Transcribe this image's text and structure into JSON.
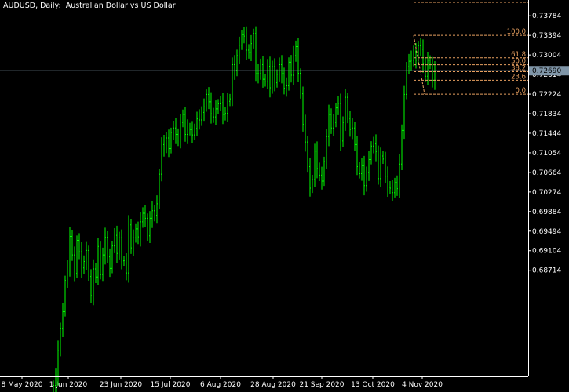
{
  "header": {
    "title": "AUDUSD, Daily:  Australian Dollar vs US Dollar"
  },
  "colors": {
    "background": "#000000",
    "candles": "#00ff00",
    "grid_text": "#ffffff",
    "fib": "#e8a060",
    "bid_line": "#8096a8",
    "price_tag_bg": "#8096a8"
  },
  "chart_data": {
    "type": "candlestick",
    "symbol": "AUDUSD",
    "timeframe": "Daily",
    "title": "AUDUSD, Daily:  Australian Dollar vs US Dollar",
    "ylim": [
      0.666,
      0.741
    ],
    "y_ticks": [
      "0.73784",
      "0.73394",
      "0.73004",
      "0.72614",
      "0.72224",
      "0.71834",
      "0.71444",
      "0.71054",
      "0.70664",
      "0.70274",
      "0.69884",
      "0.69494",
      "0.69104",
      "0.68714"
    ],
    "x_ticks": [
      "8 May 2020",
      "1 Jun 2020",
      "23 Jun 2020",
      "15 Jul 2020",
      "6 Aug 2020",
      "28 Aug 2020",
      "21 Sep 2020",
      "13 Oct 2020",
      "4 Nov 2020"
    ],
    "current_price": "0.72690",
    "closes": [
      0.6642,
      0.6661,
      0.6712,
      0.6755,
      0.6789,
      0.6851,
      0.6878,
      0.6939,
      0.6902,
      0.6865,
      0.6931,
      0.6908,
      0.6876,
      0.6889,
      0.6911,
      0.6859,
      0.6821,
      0.6874,
      0.6858,
      0.6919,
      0.6863,
      0.6902,
      0.6937,
      0.6898,
      0.6875,
      0.692,
      0.6941,
      0.6905,
      0.6936,
      0.689,
      0.6891,
      0.6866,
      0.6962,
      0.6916,
      0.6936,
      0.6954,
      0.6938,
      0.6968,
      0.6985,
      0.6975,
      0.694,
      0.6975,
      0.699,
      0.6981,
      0.7004,
      0.7063,
      0.7122,
      0.7117,
      0.7135,
      0.7114,
      0.7146,
      0.7155,
      0.7142,
      0.7131,
      0.7166,
      0.7182,
      0.7142,
      0.7153,
      0.7152,
      0.7141,
      0.7154,
      0.7173,
      0.7171,
      0.7186,
      0.7197,
      0.7222,
      0.7207,
      0.7183,
      0.7177,
      0.7193,
      0.7203,
      0.7205,
      0.7182,
      0.7184,
      0.7208,
      0.7213,
      0.7281,
      0.727,
      0.7299,
      0.732,
      0.7341,
      0.7338,
      0.731,
      0.7305,
      0.7323,
      0.7343,
      0.7263,
      0.7263,
      0.7281,
      0.7252,
      0.7247,
      0.7278,
      0.7235,
      0.7277,
      0.7245,
      0.7262,
      0.7281,
      0.7263,
      0.7234,
      0.7239,
      0.7286,
      0.726,
      0.7299,
      0.7317,
      0.7264,
      0.7223,
      0.7162,
      0.7127,
      0.7078,
      0.7035,
      0.7052,
      0.7109,
      0.7074,
      0.7061,
      0.7049,
      0.7088,
      0.7138,
      0.7182,
      0.7155,
      0.7166,
      0.7195,
      0.7204,
      0.7129,
      0.7166,
      0.7216,
      0.7174,
      0.7152,
      0.7155,
      0.7122,
      0.7078,
      0.7064,
      0.708,
      0.704,
      0.7066,
      0.7092,
      0.7119,
      0.7123,
      0.7108,
      0.7054,
      0.7099,
      0.7093,
      0.7059,
      0.7037,
      0.7035,
      0.7026,
      0.7046,
      0.7034,
      0.7083,
      0.715,
      0.7222,
      0.7277,
      0.7288,
      0.729,
      0.7307,
      0.729,
      0.7319,
      0.7312,
      0.7284,
      0.7258,
      0.729,
      0.7282,
      0.725,
      0.7269
    ],
    "fibonacci": {
      "high": 0.73394,
      "low": 0.72224,
      "levels": [
        {
          "label": "100.0",
          "ratio": 1.0
        },
        {
          "label": "61.8",
          "ratio": 0.618
        },
        {
          "label": "50.0",
          "ratio": 0.5
        },
        {
          "label": "38.2",
          "ratio": 0.382
        },
        {
          "label": "23.6",
          "ratio": 0.236
        },
        {
          "label": "0.0",
          "ratio": 0.0
        }
      ]
    }
  }
}
